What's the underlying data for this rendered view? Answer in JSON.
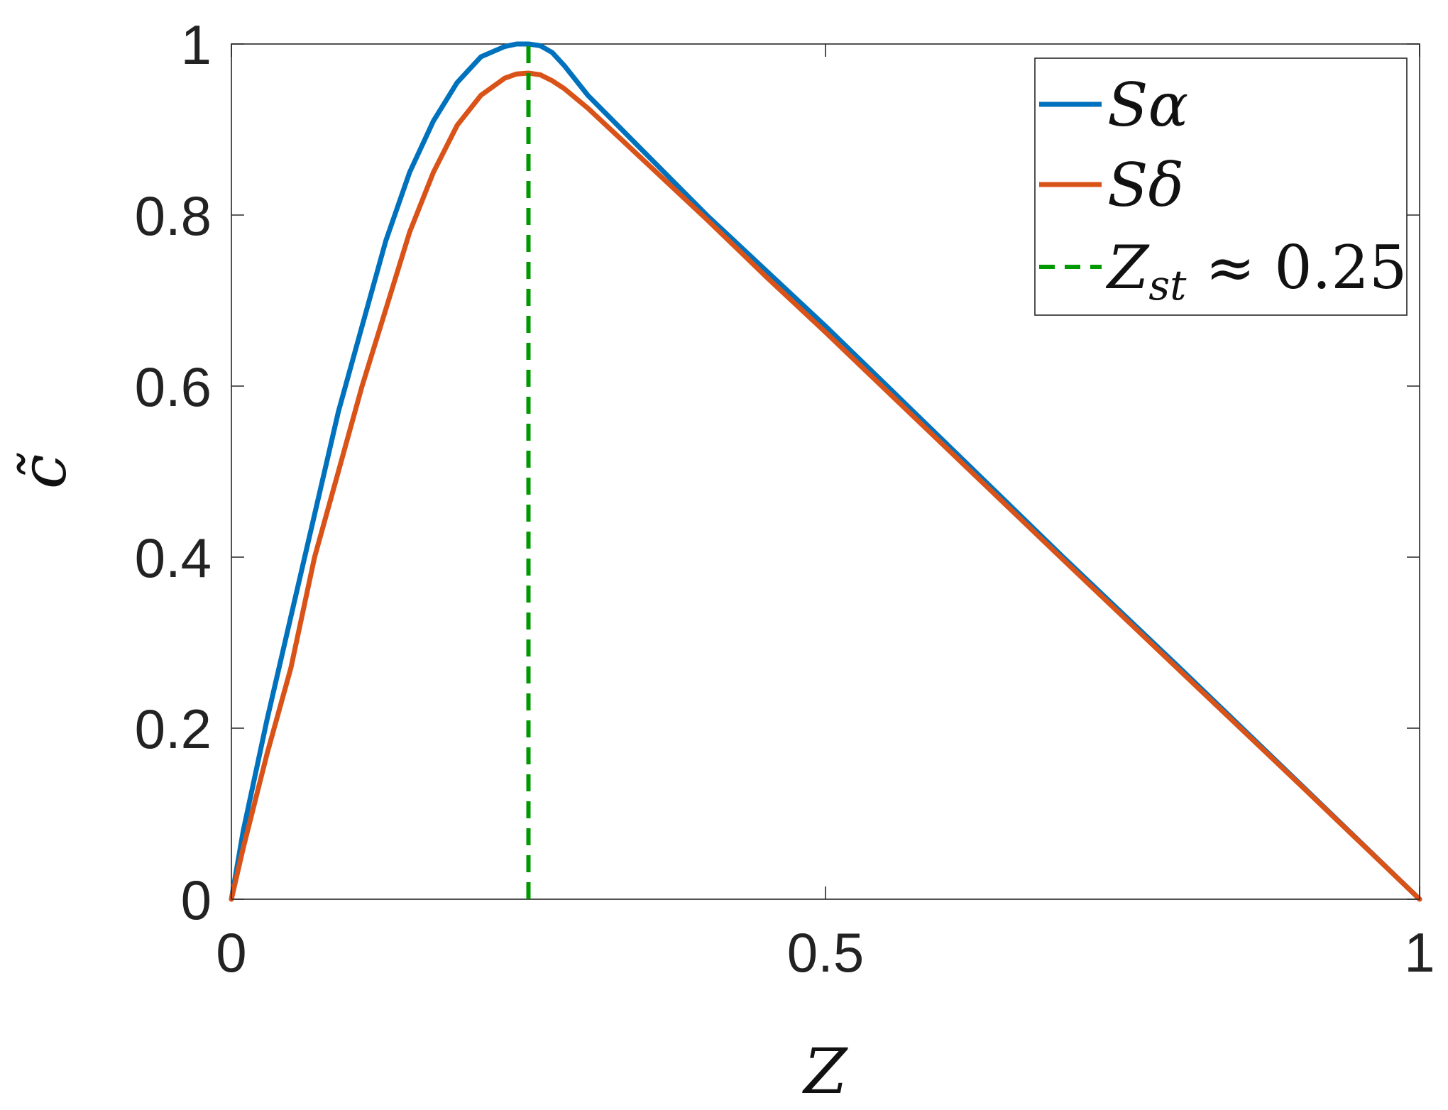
{
  "chart_data": {
    "type": "line",
    "xlabel": "Z",
    "ylabel": "c̃",
    "xlim": [
      0,
      1
    ],
    "ylim": [
      0,
      1
    ],
    "x_ticks": [
      0,
      0.5,
      1
    ],
    "x_tick_labels": [
      "0",
      "0.5",
      "1"
    ],
    "y_ticks": [
      0,
      0.2,
      0.4,
      0.6,
      0.8,
      1
    ],
    "y_tick_labels": [
      "0",
      "0.2",
      "0.4",
      "0.6",
      "0.8",
      "1"
    ],
    "grid": false,
    "box": true,
    "legend_position": "top-right",
    "series": [
      {
        "name": "Sα",
        "color": "#0072BD",
        "style": "solid",
        "x": [
          0,
          0.01,
          0.03,
          0.05,
          0.07,
          0.09,
          0.11,
          0.13,
          0.15,
          0.17,
          0.19,
          0.21,
          0.23,
          0.24,
          0.25,
          0.26,
          0.27,
          0.28,
          0.3,
          0.35,
          0.4,
          0.45,
          0.5,
          0.6,
          0.7,
          0.8,
          0.9,
          1.0
        ],
        "y": [
          0.0,
          0.08,
          0.21,
          0.33,
          0.45,
          0.57,
          0.67,
          0.77,
          0.85,
          0.91,
          0.955,
          0.985,
          0.997,
          1.0,
          1.0,
          0.998,
          0.99,
          0.975,
          0.94,
          0.87,
          0.8,
          0.735,
          0.67,
          0.535,
          0.4,
          0.268,
          0.134,
          0.0
        ]
      },
      {
        "name": "Sδ",
        "color": "#D95319",
        "style": "solid",
        "x": [
          0,
          0.01,
          0.03,
          0.05,
          0.07,
          0.09,
          0.11,
          0.13,
          0.15,
          0.17,
          0.19,
          0.21,
          0.23,
          0.24,
          0.25,
          0.26,
          0.27,
          0.28,
          0.3,
          0.35,
          0.4,
          0.45,
          0.5,
          0.6,
          0.7,
          0.8,
          0.9,
          1.0
        ],
        "y": [
          0.0,
          0.06,
          0.17,
          0.27,
          0.4,
          0.5,
          0.6,
          0.69,
          0.78,
          0.85,
          0.905,
          0.94,
          0.96,
          0.965,
          0.966,
          0.964,
          0.957,
          0.948,
          0.925,
          0.86,
          0.795,
          0.728,
          0.663,
          0.53,
          0.397,
          0.265,
          0.133,
          0.0
        ]
      },
      {
        "name": "Z_st ≈ 0.25",
        "color": "#009900",
        "style": "dashed",
        "x": [
          0.25,
          0.25
        ],
        "y": [
          0,
          1
        ]
      }
    ],
    "legend": [
      {
        "main": "S",
        "sub": "",
        "suffix": "α"
      },
      {
        "main": "S",
        "sub": "",
        "suffix": "δ"
      },
      {
        "main": "Z",
        "sub": "st",
        "suffix": " ≈ 0.25"
      }
    ]
  }
}
